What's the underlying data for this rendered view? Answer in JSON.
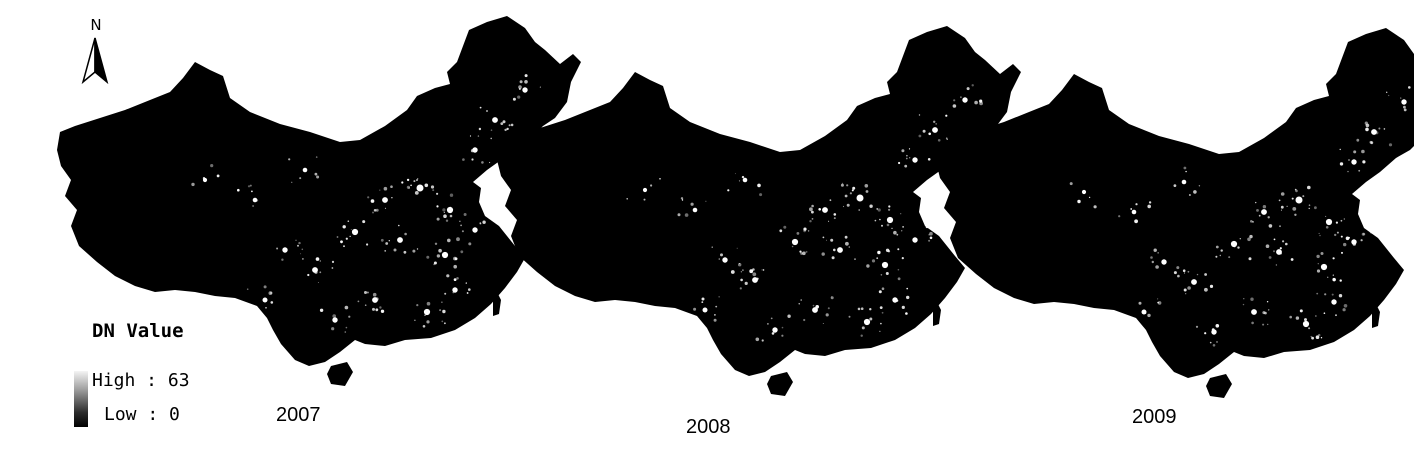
{
  "north_arrow": {
    "letter": "N",
    "icon": "north-arrow-icon"
  },
  "legend": {
    "title": "DN Value",
    "high_label": "High : 63",
    "low_label": "Low : 0",
    "high_value": 63,
    "low_value": 0
  },
  "panels": [
    {
      "year": "2007"
    },
    {
      "year": "2008"
    },
    {
      "year": "2009"
    }
  ],
  "colors": {
    "land": "#000000",
    "lights": "#ffffff",
    "background": "#ffffff"
  }
}
